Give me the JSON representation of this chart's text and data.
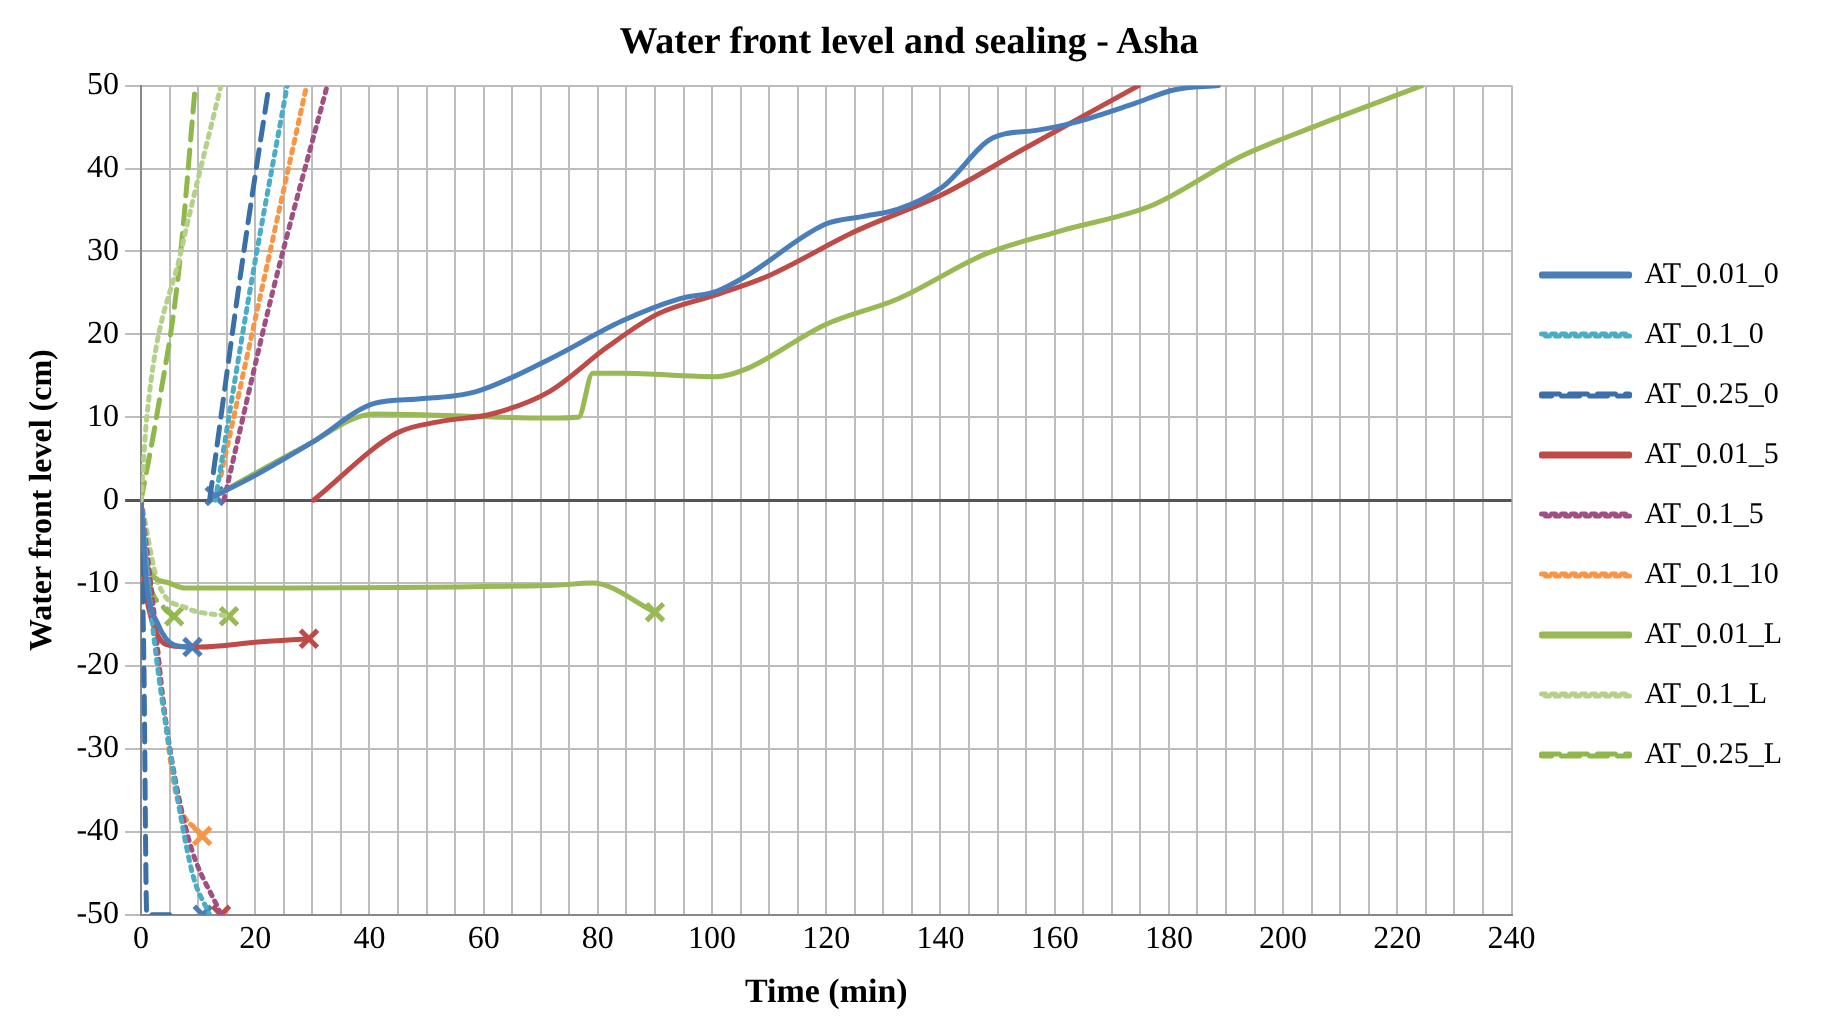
{
  "chart_data": {
    "type": "line",
    "title": "Water front level and sealing - Asha",
    "xlabel": "Time (min)",
    "ylabel": "Water front level (cm)",
    "xlim": [
      0,
      240
    ],
    "ylim": [
      -50,
      50
    ],
    "xticks": [
      0,
      {
        "value": 5,
        "label": null
      },
      {
        "value": 10,
        "label": null
      },
      {
        "value": 15,
        "label": null
      },
      20,
      {
        "value": 25,
        "label": null
      },
      {
        "value": 30,
        "label": null
      },
      {
        "value": 35,
        "label": null
      },
      40,
      {
        "value": 45,
        "label": null
      },
      {
        "value": 50,
        "label": null
      },
      {
        "value": 55,
        "label": null
      },
      60,
      {
        "value": 65,
        "label": null
      },
      {
        "value": 70,
        "label": null
      },
      {
        "value": 75,
        "label": null
      },
      80,
      {
        "value": 85,
        "label": null
      },
      {
        "value": 90,
        "label": null
      },
      {
        "value": 95,
        "label": null
      },
      100,
      {
        "value": 105,
        "label": null
      },
      {
        "value": 110,
        "label": null
      },
      {
        "value": 115,
        "label": null
      },
      120,
      {
        "value": 125,
        "label": null
      },
      {
        "value": 130,
        "label": null
      },
      {
        "value": 135,
        "label": null
      },
      140,
      {
        "value": 145,
        "label": null
      },
      {
        "value": 150,
        "label": null
      },
      {
        "value": 155,
        "label": null
      },
      160,
      {
        "value": 165,
        "label": null
      },
      {
        "value": 170,
        "label": null
      },
      {
        "value": 175,
        "label": null
      },
      180,
      {
        "value": 185,
        "label": null
      },
      {
        "value": 190,
        "label": null
      },
      {
        "value": 195,
        "label": null
      },
      200,
      {
        "value": 205,
        "label": null
      },
      {
        "value": 210,
        "label": null
      },
      {
        "value": 215,
        "label": null
      },
      220,
      {
        "value": 225,
        "label": null
      },
      {
        "value": 230,
        "label": null
      },
      {
        "value": 235,
        "label": null
      },
      240
    ],
    "yticks": [
      -50,
      -40,
      -30,
      -20,
      -10,
      0,
      10,
      20,
      30,
      40,
      50
    ],
    "grid": true,
    "legend": "right",
    "marker": "none",
    "series": [
      {
        "name": "AT_0.01_0",
        "color": "#4a7ebb",
        "line_style": "solid",
        "x": [
          12.9,
          20,
          30,
          41,
          48.5,
          58.7,
          71.5,
          84.2,
          94.4,
          100.8,
          105.9,
          119.9,
          126.2,
          132.6,
          140.4,
          149.2,
          156.8,
          163.2,
          173.4,
          181,
          188.7
        ],
        "values": [
          0.5,
          3,
          7,
          11.7,
          12.2,
          13.1,
          17,
          21.6,
          24.3,
          25.2,
          27,
          33.3,
          34.2,
          35.1,
          37.8,
          43.7,
          44.6,
          45.5,
          47.7,
          49.5,
          50
        ]
      },
      {
        "name": "AT_0.1_0",
        "color": "#4bacc6",
        "line_style": "dotted",
        "x": [
          13,
          19,
          25.6
        ],
        "values": [
          0,
          25,
          50
        ]
      },
      {
        "name": "AT_0.25_0",
        "color": "#3b6fa8",
        "line_style": "dashed",
        "x": [
          12,
          18,
          22.4
        ],
        "values": [
          0,
          30,
          50
        ]
      },
      {
        "name": "AT_0.01_5",
        "color": "#be4b48",
        "line_style": "solid",
        "x": [
          30.2,
          44.8,
          52.5,
          61.4,
          71.5,
          81.7,
          90.6,
          100.8,
          109.7,
          125,
          140.4,
          154.4,
          174.7
        ],
        "values": [
          0,
          8.1,
          9.5,
          10.4,
          13.1,
          18.5,
          22.5,
          24.8,
          27,
          32.4,
          36.9,
          42.3,
          50
        ]
      },
      {
        "name": "AT_0.1_5",
        "color": "#a05080",
        "line_style": "dotted",
        "x": [
          14.5,
          23,
          32.6
        ],
        "values": [
          0,
          25,
          50
        ]
      },
      {
        "name": "AT_0.1_10",
        "color": "#f79646",
        "line_style": "dotted",
        "x": [
          14,
          21,
          29
        ],
        "values": [
          3,
          25,
          50
        ]
      },
      {
        "name": "AT_0.01_L",
        "color": "#98b954",
        "line_style": "solid",
        "x": [
          12.9,
          28.2,
          40.9,
          71.5,
          76.6,
          79.1,
          84.2,
          100.8,
          105.9,
          119.9,
          132.6,
          147.9,
          160.6,
          177.2,
          192.4,
          205.2,
          224.3
        ],
        "values": [
          0.5,
          6.3,
          10.4,
          9.9,
          10,
          15.3,
          15.3,
          14.9,
          15.8,
          21.2,
          24.3,
          29.7,
          32.4,
          35.6,
          41.4,
          45,
          50
        ]
      },
      {
        "name": "AT_0.1_L",
        "color": "#b5d08a",
        "line_style": "dotted",
        "x": [
          0,
          1,
          7,
          14
        ],
        "values": [
          0,
          10,
          30,
          50
        ]
      },
      {
        "name": "AT_0.25_L",
        "color": "#8fb84a",
        "line_style": "dashed",
        "x": [
          0,
          2.7,
          6.5,
          9.5
        ],
        "values": [
          0,
          10,
          27,
          50
        ]
      },
      {
        "color": "#4a7ebb",
        "line_style": "solid",
        "x": [
          0,
          1,
          3,
          6,
          9
        ],
        "values": [
          0,
          -10,
          -15,
          -17.5,
          -17.7
        ]
      },
      {
        "color": "#4bacc6",
        "line_style": "dotted",
        "x": [
          0,
          2,
          5,
          9,
          12
        ],
        "values": [
          0,
          -15,
          -30,
          -45,
          -50
        ]
      },
      {
        "color": "#3b6fa8",
        "line_style": "dashed",
        "x": [
          0,
          0.5,
          1,
          5
        ],
        "values": [
          0,
          -20,
          -50,
          -50
        ]
      },
      {
        "color": "#be4b48",
        "line_style": "solid",
        "x": [
          0,
          0.7,
          5.8,
          10.3,
          20.5,
          29.4
        ],
        "values": [
          0,
          -10.8,
          -17.6,
          -17.7,
          -17.1,
          -16.7
        ]
      },
      {
        "color": "#a05080",
        "line_style": "dotted",
        "x": [
          0,
          2,
          4,
          8,
          14
        ],
        "values": [
          0,
          -12,
          -25,
          -40,
          -50
        ]
      },
      {
        "color": "#f79646",
        "line_style": "dotted",
        "x": [
          0,
          2,
          4,
          6,
          10.7
        ],
        "values": [
          0,
          -12,
          -25,
          -35,
          -40.5
        ]
      },
      {
        "color": "#98b954",
        "line_style": "solid",
        "x": [
          0,
          0.7,
          4.5,
          7.7,
          71.5,
          79.1,
          90
        ],
        "values": [
          0,
          -7.2,
          -9.9,
          -10.6,
          -10.3,
          -10,
          -13.5
        ]
      },
      {
        "color": "#b5d08a",
        "line_style": "dotted",
        "x": [
          0,
          3,
          8,
          15.4
        ],
        "values": [
          0,
          -10,
          -13,
          -14
        ]
      },
      {
        "color": "#8fb84a",
        "line_style": "dashed",
        "x": [
          0,
          1,
          4,
          5.8
        ],
        "values": [
          0,
          -8,
          -13,
          -14
        ]
      },
      {
        "type": "scatter",
        "marker": "cross",
        "color": "#4a7ebb",
        "x": [
          12.9,
          9,
          10.8
        ],
        "values": [
          0.5,
          -17.7,
          -50
        ]
      },
      {
        "type": "scatter",
        "marker": "cross",
        "color": "#be4b48",
        "x": [
          29.4,
          14
        ],
        "values": [
          -16.7,
          -50
        ]
      },
      {
        "type": "scatter",
        "marker": "cross",
        "color": "#f79646",
        "x": [
          10.7
        ],
        "values": [
          -40.5
        ]
      },
      {
        "type": "scatter",
        "marker": "cross",
        "color": "#98b954",
        "x": [
          90,
          15.4,
          5.8
        ],
        "values": [
          -13.5,
          -14,
          -14
        ]
      }
    ]
  }
}
